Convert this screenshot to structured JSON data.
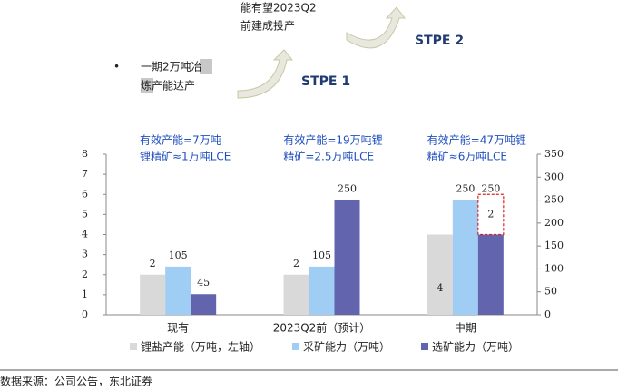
{
  "annotations": {
    "top_note": [
      "能有望2023Q2",
      "前建成投产"
    ],
    "bullet": "•",
    "bullet_note": [
      "一期2万吨冶",
      "炼产能达产"
    ],
    "step1": "STPE 1",
    "step2": "STPE 2"
  },
  "chart_data": {
    "type": "bar",
    "categories": [
      "现有",
      "2023Q2前（预计）",
      "中期"
    ],
    "group_notes": [
      [
        "有效产能=7万吨",
        "锂精矿≈1万吨LCE"
      ],
      [
        "有效产能=19万吨锂",
        "精矿=2.5万吨LCE"
      ],
      [
        "有效产能=47万吨锂",
        "精矿≈6万吨LCE"
      ]
    ],
    "series": [
      {
        "name": "锂盐产能（万吨，左轴）",
        "color": "#d9d9d9",
        "axis": "y",
        "values": [
          2,
          2,
          4
        ]
      },
      {
        "name": "采矿能力（万吨）",
        "color": "#9fcdf3",
        "axis": "y2",
        "values": [
          105,
          105,
          250
        ]
      },
      {
        "name": "选矿能力（万吨）",
        "color": "#6264ae",
        "axis": "y2",
        "values": [
          45,
          250,
          250
        ]
      },
      {
        "color": "#ffffff",
        "border": "#e02020",
        "axis": "y",
        "stacked": true,
        "values": [
          null,
          null,
          2
        ]
      }
    ],
    "ylim": [
      0,
      8
    ],
    "yticks": [
      0,
      1,
      2,
      3,
      4,
      5,
      6,
      7,
      8
    ],
    "y2lim": [
      0,
      350
    ],
    "y2ticks": [
      0,
      50,
      100,
      150,
      200,
      250,
      300,
      350
    ],
    "source": "数据来源：公司公告，东北证券"
  }
}
